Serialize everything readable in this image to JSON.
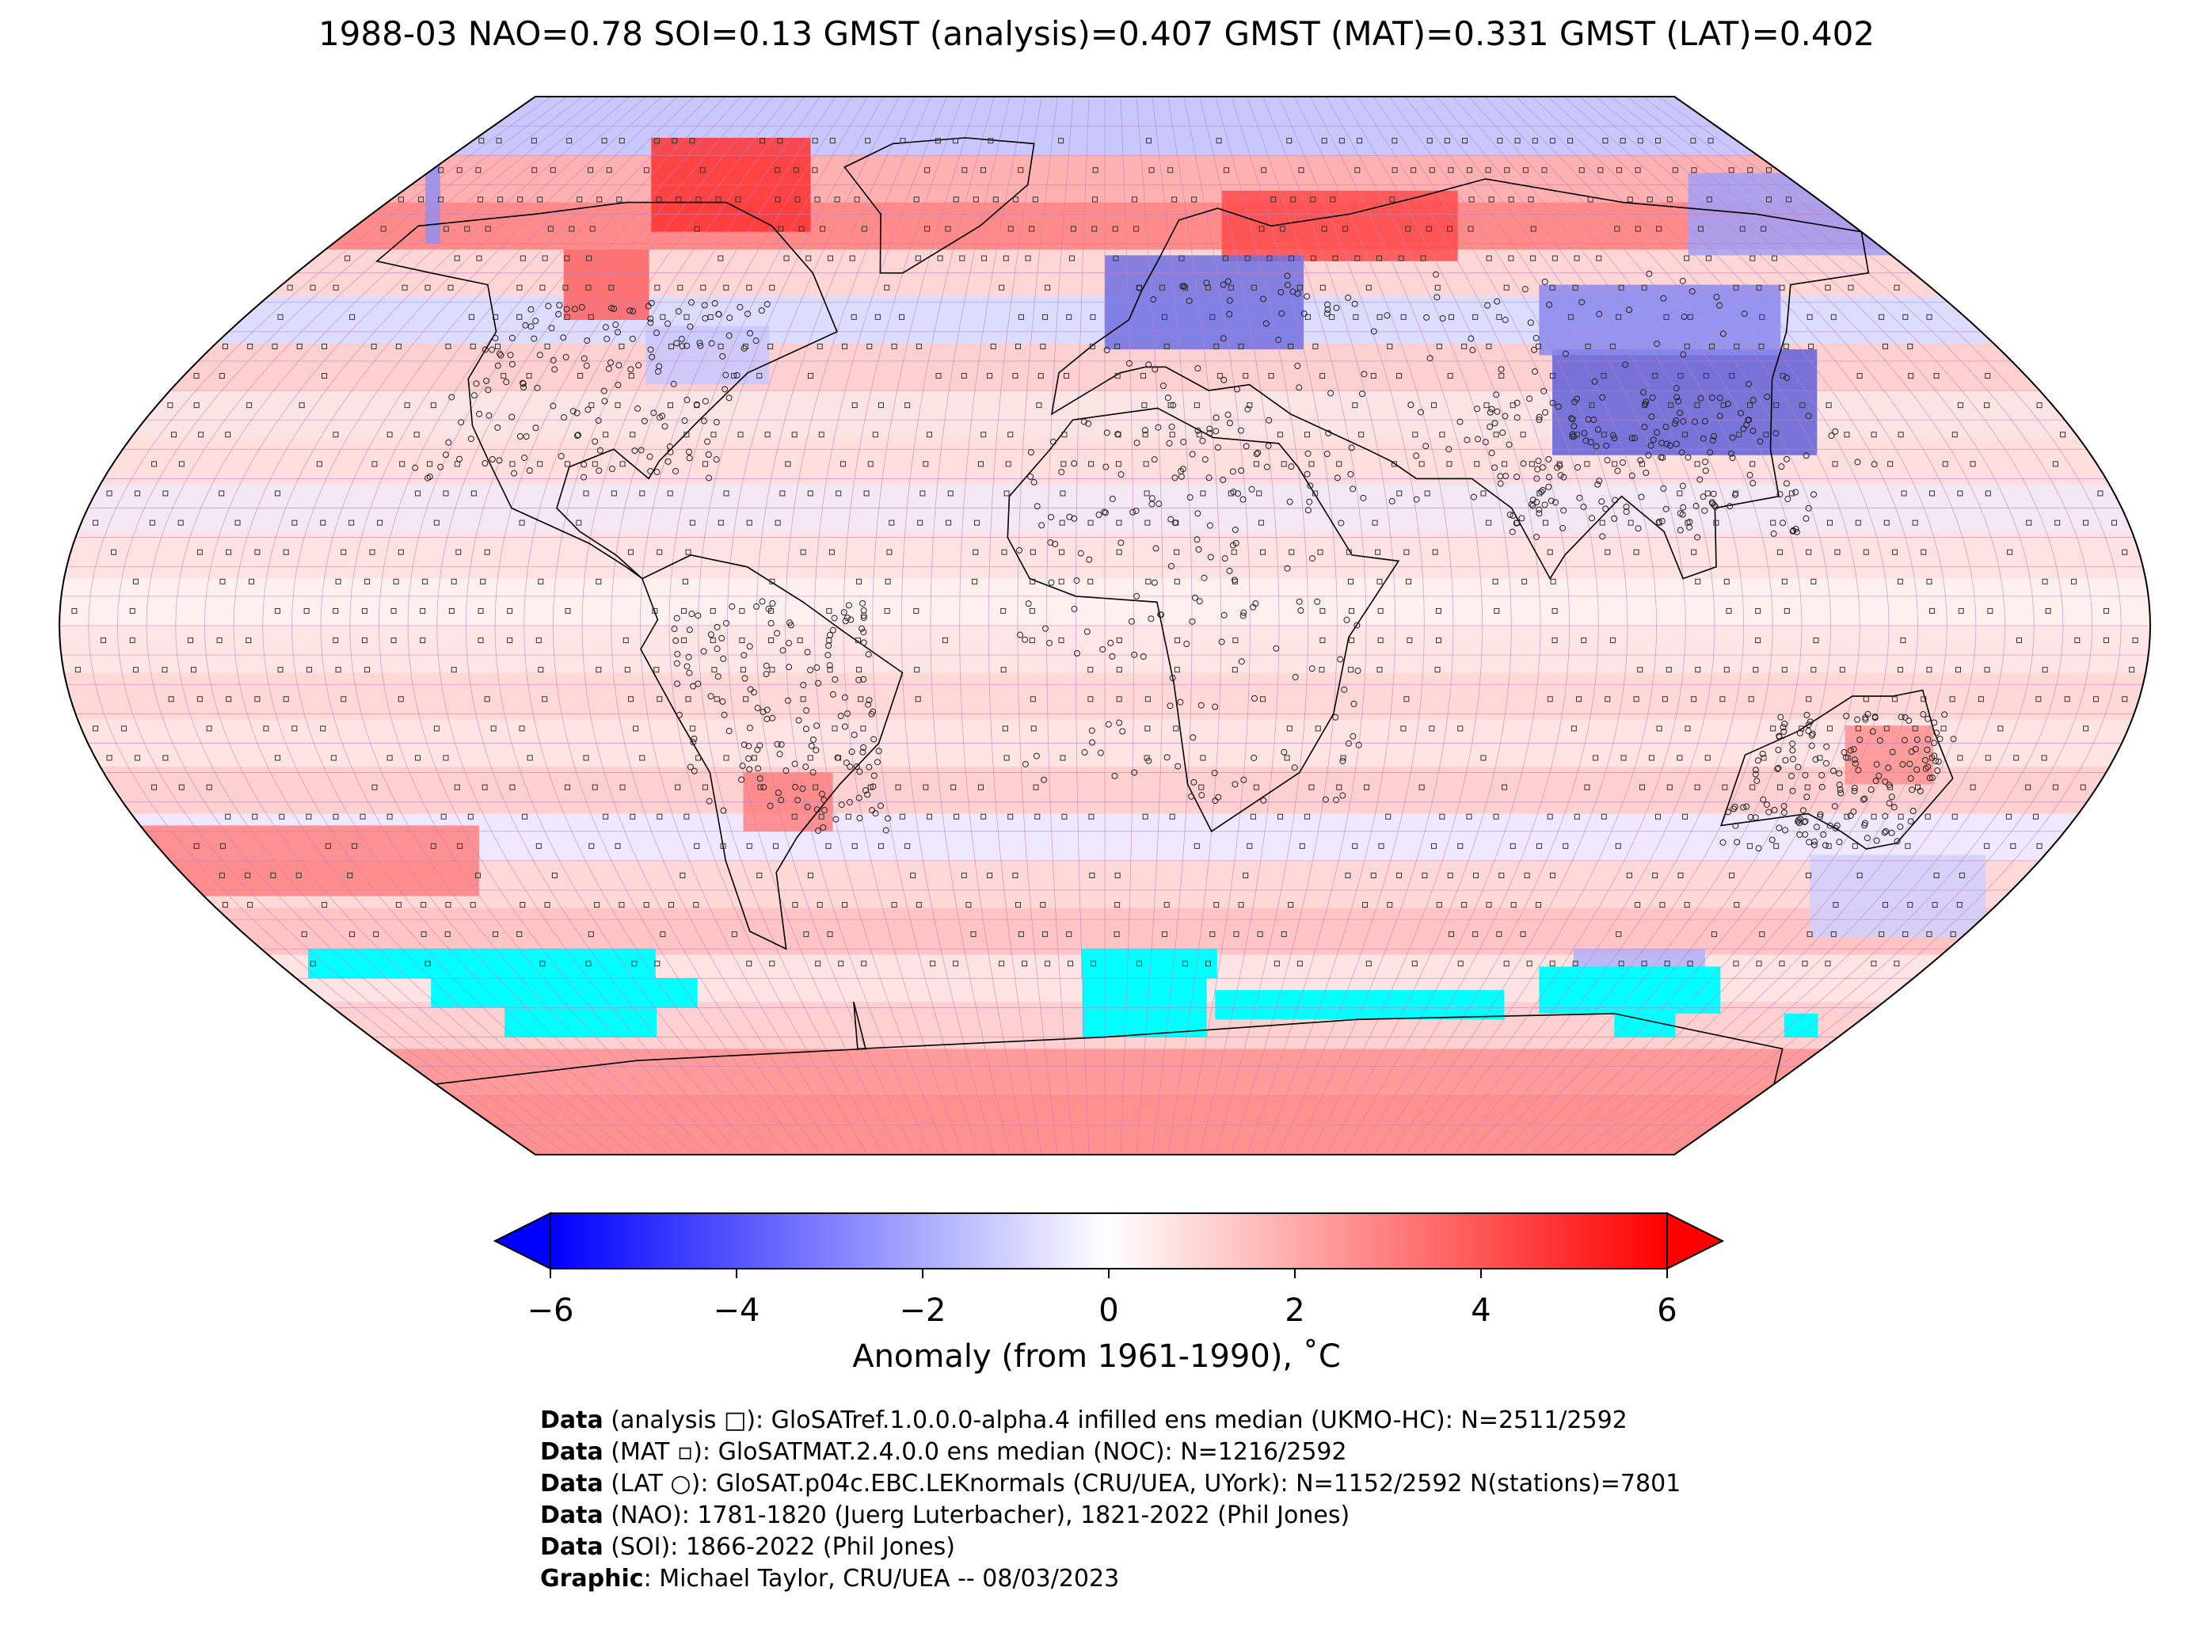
{
  "title": "1988-03 NAO=0.78 SOI=0.13 GMST (analysis)=0.407 GMST (MAT)=0.331 GMST (LAT)=0.402",
  "colorbar": {
    "ticks": [
      "−6",
      "−4",
      "−2",
      "0",
      "2",
      "4",
      "6"
    ],
    "tick_values": [
      -6,
      -4,
      -2,
      0,
      2,
      4,
      6
    ],
    "label": "Anomaly (from 1961-1990), ˚C",
    "min_color": "#0000ff",
    "mid_color": "#ffffff",
    "max_color": "#ff0000",
    "no_data_fill": "#00ffff"
  },
  "map": {
    "projection": "Robinson",
    "gridline_color": "#c080c0",
    "coastline_color": "#000000"
  },
  "credits": [
    {
      "label": "Data",
      "text": " (analysis □): GloSATref.1.0.0.0-alpha.4 infilled ens median (UKMO-HC): N=2511/2592"
    },
    {
      "label": "Data",
      "text": " (MAT ▫): GloSATMAT.2.4.0.0 ens median (NOC): N=1216/2592"
    },
    {
      "label": "Data",
      "text": " (LAT ○): GloSAT.p04c.EBC.LEKnormals (CRU/UEA, UYork): N=1152/2592 N(stations)=7801"
    },
    {
      "label": "Data",
      "text": " (NAO): 1781-1820 (Juerg Luterbacher), 1821-2022 (Phil Jones)"
    },
    {
      "label": "Data",
      "text": " (SOI): 1866-2022 (Phil Jones)"
    },
    {
      "label": "Graphic",
      "text": ": Michael Taylor, CRU/UEA -- 08/03/2023"
    }
  ]
}
